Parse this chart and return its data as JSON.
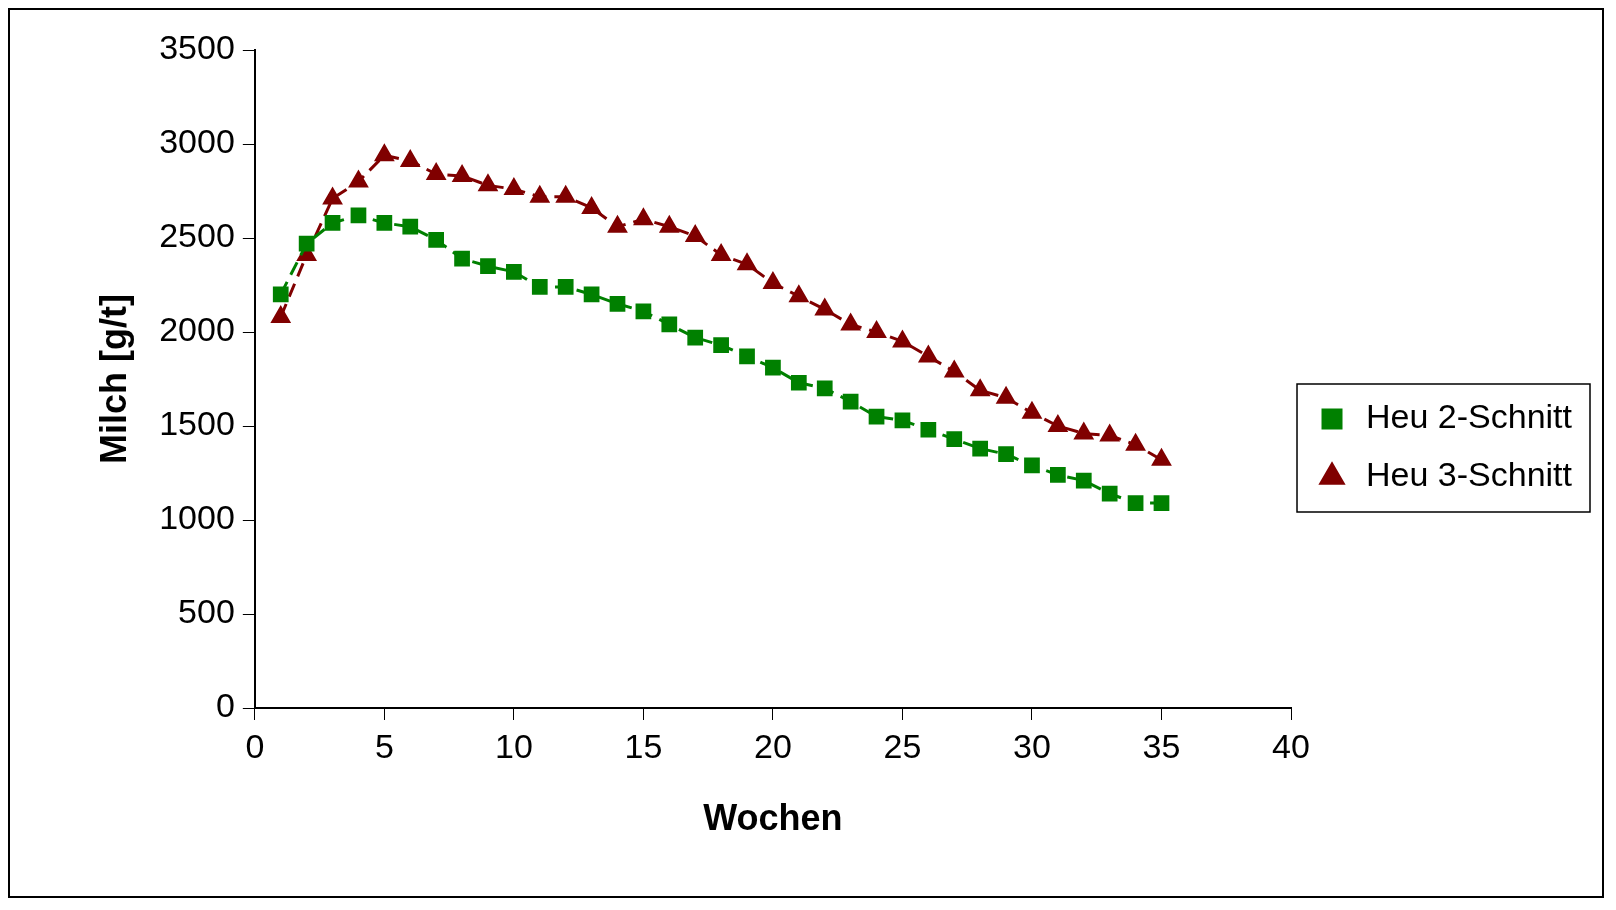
{
  "chart_data": {
    "type": "line",
    "xlabel": "Wochen",
    "ylabel": "Milch [g/t]",
    "x": [
      1,
      2,
      3,
      4,
      5,
      6,
      7,
      8,
      9,
      10,
      11,
      12,
      13,
      14,
      15,
      16,
      17,
      18,
      19,
      20,
      21,
      22,
      23,
      24,
      25,
      26,
      27,
      28,
      29,
      30,
      31,
      32,
      33,
      34,
      35
    ],
    "series": [
      {
        "name": "Heu 2-Schnitt",
        "color": "#008000",
        "marker": "square",
        "line_style": "dashed",
        "values": [
          2200,
          2470,
          2580,
          2620,
          2580,
          2560,
          2490,
          2390,
          2350,
          2320,
          2240,
          2240,
          2200,
          2150,
          2110,
          2040,
          1970,
          1930,
          1870,
          1810,
          1730,
          1700,
          1630,
          1550,
          1530,
          1480,
          1430,
          1380,
          1350,
          1290,
          1240,
          1210,
          1140,
          1090,
          1090
        ]
      },
      {
        "name": "Heu 3-Schnitt",
        "color": "#800000",
        "marker": "triangle",
        "line_style": "dashed",
        "values": [
          2080,
          2410,
          2710,
          2800,
          2940,
          2910,
          2840,
          2830,
          2780,
          2760,
          2720,
          2720,
          2660,
          2560,
          2600,
          2560,
          2510,
          2410,
          2360,
          2260,
          2190,
          2120,
          2040,
          2000,
          1950,
          1870,
          1790,
          1690,
          1650,
          1570,
          1500,
          1460,
          1450,
          1400,
          1320
        ]
      }
    ],
    "xlim": [
      0,
      40
    ],
    "xticks": [
      0,
      5,
      10,
      15,
      20,
      25,
      30,
      35,
      40
    ],
    "ylim": [
      0,
      3500
    ],
    "yticks": [
      0,
      500,
      1000,
      1500,
      2000,
      2500,
      3000,
      3500
    ],
    "grid": false,
    "legend": "right"
  }
}
